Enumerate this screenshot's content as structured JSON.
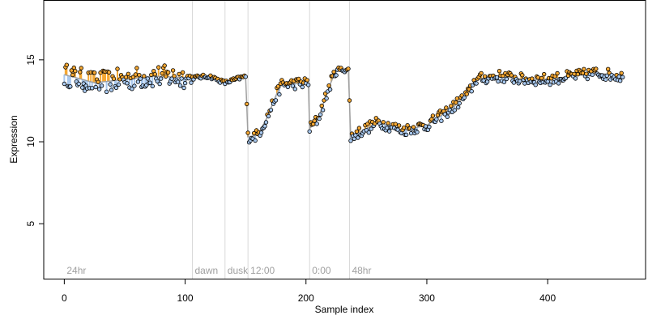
{
  "chart_data": {
    "type": "scatter",
    "title": "",
    "xlabel": "Sample index",
    "ylabel": "Expression",
    "xlim": [
      -17,
      481
    ],
    "ylim": [
      1.6,
      18.6
    ],
    "x_ticks": [
      0,
      100,
      200,
      300,
      400
    ],
    "y_ticks": [
      5,
      10,
      15
    ],
    "grid": false,
    "point_style": "open circles filled by deviation from the trend line: orange above, light blue below",
    "colors": {
      "above": "#f5a833",
      "below": "#a8c8ee",
      "trend": "#a0a0a0",
      "separator": "#d9d9d9",
      "label": "#a0a0a0"
    },
    "regions": [
      {
        "label": "24hr",
        "x_start": 0
      },
      {
        "label": "dawn",
        "x_start": 106
      },
      {
        "label": "dusk",
        "x_start": 133
      },
      {
        "label": "12:00",
        "x_start": 152
      },
      {
        "label": "0:00",
        "x_start": 203
      },
      {
        "label": "48hr",
        "x_start": 236
      }
    ],
    "profile_control_points": [
      [
        0,
        14.1
      ],
      [
        25,
        13.6
      ],
      [
        50,
        13.8
      ],
      [
        75,
        14.0
      ],
      [
        105,
        13.9
      ],
      [
        120,
        14.0
      ],
      [
        133,
        13.6
      ],
      [
        150,
        14.0
      ],
      [
        152,
        10.3
      ],
      [
        160,
        10.4
      ],
      [
        168,
        11.5
      ],
      [
        175,
        12.8
      ],
      [
        180,
        13.5
      ],
      [
        202,
        13.6
      ],
      [
        203,
        10.8
      ],
      [
        210,
        11.4
      ],
      [
        220,
        13.5
      ],
      [
        225,
        14.4
      ],
      [
        235,
        14.4
      ],
      [
        237,
        10.3
      ],
      [
        260,
        11.2
      ],
      [
        280,
        10.7
      ],
      [
        300,
        11.0
      ],
      [
        320,
        12.0
      ],
      [
        335,
        13.0
      ],
      [
        340,
        13.8
      ],
      [
        360,
        14.0
      ],
      [
        380,
        13.8
      ],
      [
        400,
        13.8
      ],
      [
        420,
        14.0
      ],
      [
        440,
        14.2
      ],
      [
        462,
        14.0
      ]
    ],
    "n_points": 463
  }
}
